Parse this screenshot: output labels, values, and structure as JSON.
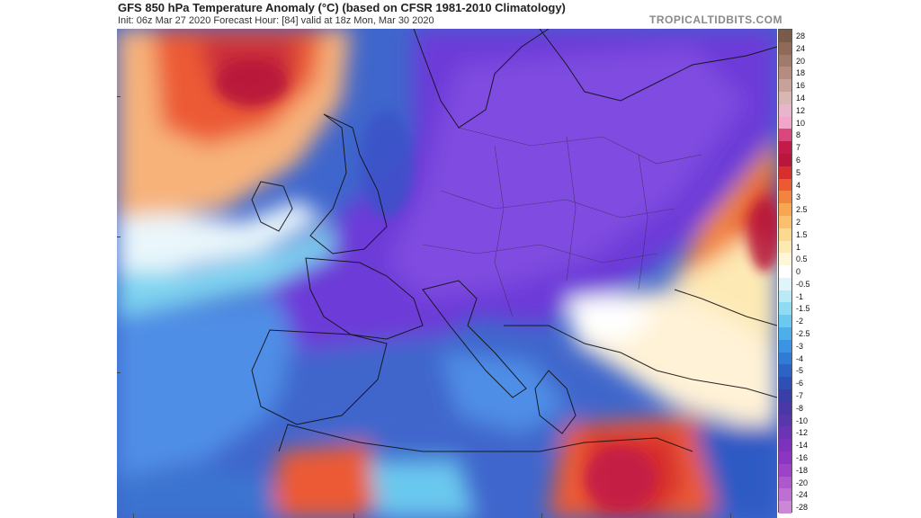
{
  "header": {
    "title": "GFS 850 hPa Temperature Anomaly (°C) (based on CFSR 1981-2010 Climatology)",
    "subtitle": "Init: 06z Mar 27 2020   Forecast Hour: [84]   valid at 18z Mon, Mar 30 2020",
    "brand": "TROPICALTIDBITS.COM"
  },
  "colorbar": {
    "labels": [
      "28",
      "24",
      "20",
      "18",
      "16",
      "14",
      "12",
      "10",
      "8",
      "7",
      "6",
      "5",
      "4",
      "3",
      "2.5",
      "2",
      "1.5",
      "1",
      "0.5",
      "0",
      "-0.5",
      "-1",
      "-1.5",
      "-2",
      "-2.5",
      "-3",
      "-4",
      "-5",
      "-6",
      "-7",
      "-8",
      "-10",
      "-12",
      "-14",
      "-16",
      "-18",
      "-20",
      "-24",
      "-28"
    ],
    "colors": [
      "#7a5a48",
      "#8f6a58",
      "#a07a6b",
      "#b58c7f",
      "#c7a29a",
      "#d8b7b3",
      "#e7b5cc",
      "#f2a5c9",
      "#d9487c",
      "#c21a4a",
      "#b8163a",
      "#d72e2e",
      "#ec5a35",
      "#f3843f",
      "#f9a652",
      "#fbbf6d",
      "#fdd98f",
      "#fde9b4",
      "#fff6da",
      "#ffffff",
      "#dff5fb",
      "#b8ebf7",
      "#8fdcf2",
      "#6bc8ee",
      "#4eaee9",
      "#3a94e3",
      "#2f7bd6",
      "#2b64c6",
      "#2e4fb4",
      "#3a3fa7",
      "#4a38a8",
      "#5837ad",
      "#6a34b5",
      "#7c32bc",
      "#8c35c2",
      "#9c43c7",
      "#ad58cc",
      "#bd70d1",
      "#cb88d6"
    ]
  },
  "map": {
    "region": "Europe / North Africa",
    "palette": {
      "deep_purple": "#6d3bd8",
      "purple": "#7f4be0",
      "violet": "#5a48d4",
      "blue": "#3f66cc",
      "light_blue": "#4f8ee6",
      "cyan": "#7fd4f0",
      "white": "#ffffff",
      "cream": "#fff0c8",
      "orange": "#f3843f",
      "red": "#d72e2e",
      "dark_red": "#b8163a",
      "magenta": "#c21a4a"
    }
  }
}
